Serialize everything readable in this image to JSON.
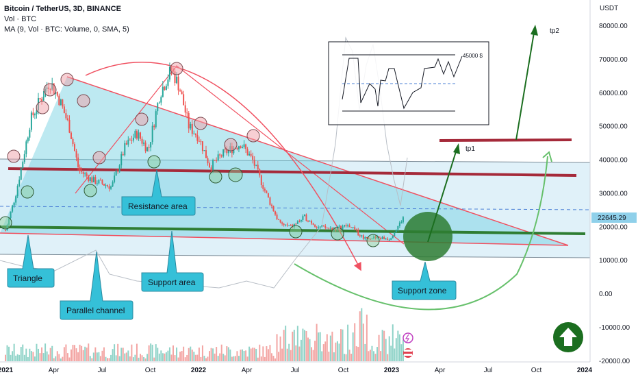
{
  "legend": {
    "title": "Bitcoin / TetherUS, 3D, BINANCE",
    "vol": "Vol · BTC",
    "ma": "MA (9, Vol · BTC: Volume, 0, SMA, 5)"
  },
  "chart_data": {
    "type": "candlestick",
    "unit_label": "USDT",
    "y_ticks": [
      "80000.00",
      "70000.00",
      "60000.00",
      "50000.00",
      "40000.00",
      "30000.00",
      "20000.00",
      "10000.00",
      "0.00",
      "-10000.00",
      "-20000.00"
    ],
    "x_ticks": [
      "2021",
      "Apr",
      "Jul",
      "Oct",
      "2022",
      "Apr",
      "Jul",
      "Oct",
      "2023",
      "Apr",
      "Jul",
      "Oct",
      "2024"
    ],
    "last_price": "22645.29",
    "price_path": [
      [
        2021.0,
        19000
      ],
      [
        2021.05,
        29000
      ],
      [
        2021.09,
        40000
      ],
      [
        2021.13,
        52000
      ],
      [
        2021.18,
        58000
      ],
      [
        2021.23,
        63500
      ],
      [
        2021.28,
        58000
      ],
      [
        2021.33,
        50000
      ],
      [
        2021.38,
        37000
      ],
      [
        2021.45,
        34000
      ],
      [
        2021.55,
        32000
      ],
      [
        2021.62,
        44000
      ],
      [
        2021.68,
        48000
      ],
      [
        2021.74,
        43000
      ],
      [
        2021.8,
        60000
      ],
      [
        2021.86,
        67000
      ],
      [
        2021.9,
        62000
      ],
      [
        2021.95,
        50000
      ],
      [
        2022.0,
        47000
      ],
      [
        2022.06,
        38000
      ],
      [
        2022.13,
        42000
      ],
      [
        2022.22,
        45000
      ],
      [
        2022.28,
        40000
      ],
      [
        2022.35,
        30000
      ],
      [
        2022.42,
        21000
      ],
      [
        2022.48,
        20000
      ],
      [
        2022.55,
        23000
      ],
      [
        2022.62,
        20000
      ],
      [
        2022.7,
        19500
      ],
      [
        2022.78,
        20500
      ],
      [
        2022.85,
        17000
      ],
      [
        2022.92,
        16800
      ],
      [
        2022.99,
        16600
      ],
      [
        2023.03,
        20000
      ],
      [
        2023.06,
        22645
      ]
    ],
    "annotations": [
      "Resistance area",
      "Triangle",
      "Parallel channel",
      "Support area",
      "Support zone",
      "tp1",
      "tp2",
      "45000 $"
    ]
  },
  "colors": {
    "triangle_fill": "#6ccfe0",
    "channel_fill": "#a6d8ef",
    "resistance": "#a52a3a",
    "support": "#2e7d32",
    "callout": "#35c0d8",
    "arrow_green": "#1b6e1f",
    "arc_red": "#f05060",
    "arc_green": "#66c06b",
    "circle_pink": "#f0a0a8"
  }
}
